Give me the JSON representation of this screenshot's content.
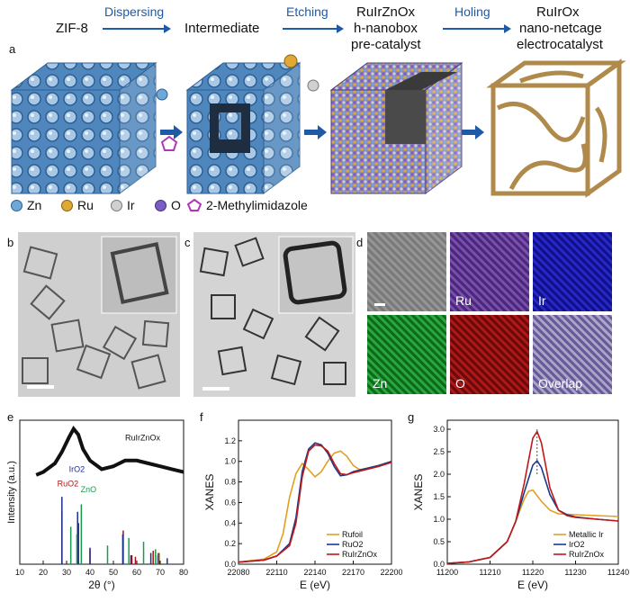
{
  "header": {
    "zif8": "ZIF-8",
    "dispersing": "Dispersing",
    "intermediate": "Intermediate",
    "etching": "Etching",
    "prec_line1": "RuIrZnOx",
    "prec_line2": "h-nanobox",
    "prec_line3": "pre-catalyst",
    "holing": "Holing",
    "final_line1": "RuIrOx",
    "final_line2": "nano-netcage",
    "final_line3": "electrocatalyst"
  },
  "panel_labels": {
    "a": "a",
    "b": "b",
    "c": "c",
    "d": "d",
    "e": "e",
    "f": "f",
    "g": "g"
  },
  "legend": {
    "zn": "Zn",
    "ru": "Ru",
    "ir": "Ir",
    "o": "O",
    "mim": "2-Methylimidazole",
    "colors": {
      "zn": "#6fa7d6",
      "ru": "#e0a935",
      "ir": "#c9c9c9",
      "o": "#7a5cc2",
      "mim": "#b237b8"
    }
  },
  "eds_maps": {
    "ru": "Ru",
    "ir": "Ir",
    "zn": "Zn",
    "o": "O",
    "overlap": "Overlap"
  },
  "chart_data": [
    {
      "panel": "e",
      "type": "line",
      "title": "",
      "xlabel": "2θ (°)",
      "ylabel": "Intensity (a.u.)",
      "xlim": [
        10,
        80
      ],
      "xticks": [
        10,
        20,
        30,
        40,
        50,
        60,
        70,
        80
      ],
      "series": [
        {
          "name": "RuIrZnOx",
          "x": [
            17,
            20,
            25,
            28,
            31,
            33,
            35,
            37,
            40,
            45,
            50,
            55,
            60,
            65,
            70,
            75,
            80
          ],
          "y": [
            0.62,
            0.64,
            0.7,
            0.78,
            0.88,
            0.94,
            0.9,
            0.8,
            0.72,
            0.66,
            0.68,
            0.72,
            0.72,
            0.7,
            0.68,
            0.66,
            0.64
          ]
        }
      ],
      "reference_sticks": [
        {
          "name": "RuO2",
          "color": "#b01010",
          "positions": [
            28.0,
            35.1,
            40.0,
            54.2,
            57.9,
            59.4,
            67.0,
            69.5
          ],
          "heights": [
            0.72,
            0.55,
            0.2,
            0.45,
            0.12,
            0.1,
            0.18,
            0.15
          ]
        },
        {
          "name": "IrO2",
          "color": "#1a2f8a",
          "positions": [
            28.0,
            34.7,
            40.0,
            54.0,
            57.5,
            66.0,
            69.0,
            73.0
          ],
          "heights": [
            0.9,
            0.7,
            0.22,
            0.4,
            0.12,
            0.15,
            0.12,
            0.08
          ]
        },
        {
          "name": "ZnO",
          "color": "#1a9a50",
          "positions": [
            31.8,
            34.4,
            36.3,
            47.5,
            56.6,
            62.9,
            68.0,
            69.1
          ],
          "heights": [
            0.5,
            0.4,
            0.8,
            0.25,
            0.35,
            0.3,
            0.2,
            0.15
          ]
        }
      ]
    },
    {
      "panel": "f",
      "type": "line",
      "title": "",
      "xlabel": "E (eV)",
      "ylabel": "XANES",
      "xlim": [
        22080,
        22200
      ],
      "ylim": [
        0.0,
        1.4
      ],
      "xticks": [
        22080,
        22110,
        22140,
        22170,
        22200
      ],
      "yticks": [
        0.0,
        0.2,
        0.4,
        0.6,
        0.8,
        1.0,
        1.2
      ],
      "legend_position": "bottom-right",
      "series": [
        {
          "name": "Rufoil",
          "color": "#e0a020",
          "x": [
            22080,
            22100,
            22110,
            22115,
            22120,
            22125,
            22130,
            22135,
            22140,
            22145,
            22150,
            22155,
            22160,
            22165,
            22170,
            22175,
            22180,
            22190,
            22200
          ],
          "y": [
            0.02,
            0.05,
            0.12,
            0.3,
            0.65,
            0.88,
            0.98,
            0.92,
            0.85,
            0.9,
            1.0,
            1.08,
            1.1,
            1.05,
            0.96,
            0.92,
            0.93,
            0.96,
            1.0
          ]
        },
        {
          "name": "RuO2",
          "color": "#1a3a8a",
          "x": [
            22080,
            22100,
            22110,
            22120,
            22125,
            22130,
            22135,
            22140,
            22145,
            22150,
            22155,
            22160,
            22165,
            22170,
            22180,
            22190,
            22200
          ],
          "y": [
            0.02,
            0.04,
            0.08,
            0.2,
            0.45,
            0.9,
            1.12,
            1.18,
            1.16,
            1.08,
            0.95,
            0.86,
            0.87,
            0.9,
            0.93,
            0.96,
            1.0
          ]
        },
        {
          "name": "RuIrZnOx",
          "color": "#c01818",
          "x": [
            22080,
            22100,
            22110,
            22120,
            22125,
            22130,
            22135,
            22140,
            22145,
            22150,
            22155,
            22160,
            22165,
            22170,
            22180,
            22190,
            22200
          ],
          "y": [
            0.02,
            0.04,
            0.08,
            0.18,
            0.4,
            0.85,
            1.1,
            1.16,
            1.15,
            1.1,
            0.98,
            0.88,
            0.87,
            0.89,
            0.92,
            0.95,
            0.99
          ]
        }
      ]
    },
    {
      "panel": "g",
      "type": "line",
      "title": "",
      "xlabel": "E (eV)",
      "ylabel": "XANES",
      "xlim": [
        11200,
        11240
      ],
      "ylim": [
        0.0,
        3.2
      ],
      "xticks": [
        11200,
        11210,
        11220,
        11230,
        11240
      ],
      "yticks": [
        0.0,
        0.5,
        1.0,
        1.5,
        2.0,
        2.5,
        3.0
      ],
      "legend_position": "bottom-right",
      "series": [
        {
          "name": "Metallic Ir",
          "color": "#e0a020",
          "x": [
            11200,
            11205,
            11210,
            11214,
            11216,
            11218,
            11219,
            11220,
            11222,
            11224,
            11226,
            11230,
            11235,
            11240
          ],
          "y": [
            0.02,
            0.05,
            0.15,
            0.5,
            0.95,
            1.45,
            1.62,
            1.65,
            1.4,
            1.2,
            1.12,
            1.1,
            1.08,
            1.06
          ]
        },
        {
          "name": "IrO2",
          "color": "#1a3a8a",
          "x": [
            11200,
            11205,
            11210,
            11214,
            11216,
            11218,
            11220,
            11221,
            11222,
            11224,
            11226,
            11228,
            11230,
            11235,
            11240
          ],
          "y": [
            0.02,
            0.05,
            0.15,
            0.5,
            0.95,
            1.6,
            2.2,
            2.3,
            2.15,
            1.55,
            1.2,
            1.1,
            1.05,
            1.0,
            0.96
          ]
        },
        {
          "name": "RuIrZnOx",
          "color": "#c01818",
          "x": [
            11200,
            11205,
            11210,
            11214,
            11216,
            11218,
            11220,
            11221,
            11222,
            11224,
            11226,
            11228,
            11230,
            11235,
            11240
          ],
          "y": [
            0.02,
            0.05,
            0.15,
            0.5,
            0.95,
            1.8,
            2.8,
            2.95,
            2.7,
            1.7,
            1.2,
            1.08,
            1.04,
            1.0,
            0.96
          ]
        }
      ]
    }
  ]
}
